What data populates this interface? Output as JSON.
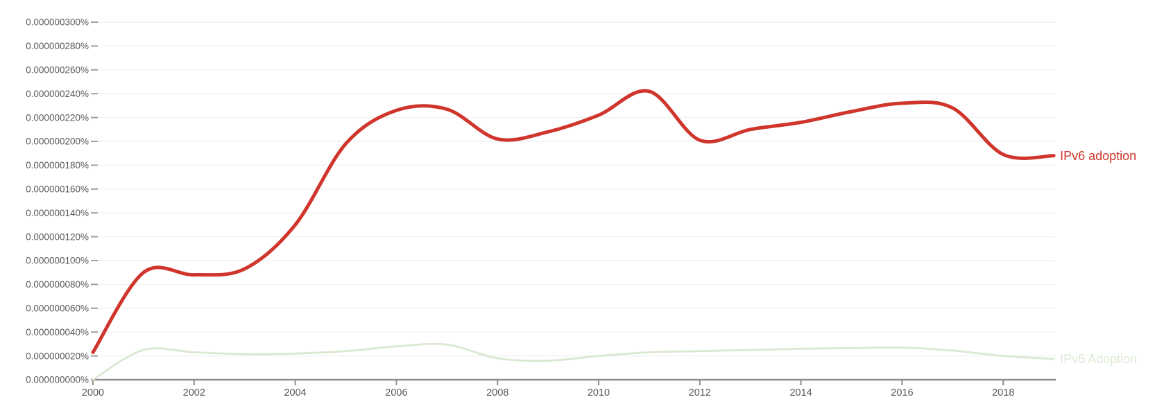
{
  "chart_data": {
    "type": "line",
    "title": "",
    "xlabel": "",
    "ylabel": "",
    "grid": true,
    "legend_position": "end-of-line",
    "background_color": "#ffffff",
    "grid_color": "#f1f1f1",
    "axis_color": "#8f8f8f",
    "tick_color": "#9e9e9e",
    "tick_label_color": "#54585d",
    "xlim": [
      2000,
      2019
    ],
    "ylim_percent": [
      0.0,
      3e-07
    ],
    "x_tick_labels": [
      "2000",
      "2002",
      "2004",
      "2006",
      "2008",
      "2010",
      "2012",
      "2014",
      "2016",
      "2018"
    ],
    "y_tick_labels": [
      "0.000000300%",
      "0.000000280%",
      "0.000000260%",
      "0.000000240%",
      "0.000000220%",
      "0.000000200%",
      "0.000000180%",
      "0.000000160%",
      "0.000000140%",
      "0.000000120%",
      "0.000000100%",
      "0.000000080%",
      "0.000000060%",
      "0.000000040%",
      "0.000000020%",
      "0.000000000%"
    ],
    "y_tick_values_e9_percent": [
      300,
      280,
      260,
      240,
      220,
      200,
      180,
      160,
      140,
      120,
      100,
      80,
      60,
      40,
      20,
      0
    ],
    "x": [
      2000,
      2001,
      2002,
      2003,
      2004,
      2005,
      2006,
      2007,
      2008,
      2009,
      2010,
      2011,
      2012,
      2013,
      2014,
      2015,
      2016,
      2017,
      2018,
      2019
    ],
    "series": [
      {
        "name": "IPv6 Adoption",
        "emphasis": "faded",
        "color": "#d9e8d2",
        "label_color": "#dcead6",
        "line_width": 2.8,
        "values_e9_percent": [
          0,
          25,
          23,
          21.5,
          22,
          24,
          28,
          29.5,
          18,
          16,
          20,
          23,
          24,
          25,
          26,
          26.5,
          27,
          24.5,
          20,
          17.5
        ]
      },
      {
        "name": "IPv6 adoption",
        "emphasis": "highlighted",
        "color": "#d0352c",
        "label_color": "#d0352c",
        "line_width": 5,
        "values_e9_percent": [
          23,
          90,
          88,
          93,
          130,
          198,
          226,
          227,
          202,
          208,
          222,
          242,
          201,
          210,
          216,
          225,
          232,
          228,
          189,
          188
        ]
      }
    ]
  }
}
